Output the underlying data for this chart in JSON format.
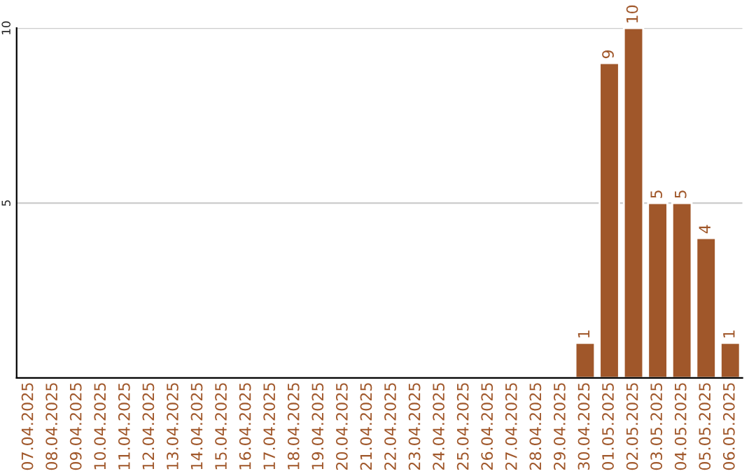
{
  "chart_data": {
    "type": "bar",
    "categories": [
      "07.04.2025",
      "08.04.2025",
      "09.04.2025",
      "10.04.2025",
      "11.04.2025",
      "12.04.2025",
      "13.04.2025",
      "14.04.2025",
      "15.04.2025",
      "16.04.2025",
      "17.04.2025",
      "18.04.2025",
      "19.04.2025",
      "20.04.2025",
      "21.04.2025",
      "22.04.2025",
      "23.04.2025",
      "24.04.2025",
      "25.04.2025",
      "26.04.2025",
      "27.04.2025",
      "28.04.2025",
      "29.04.2025",
      "30.04.2025",
      "01.05.2025",
      "02.05.2025",
      "03.05.2025",
      "04.05.2025",
      "05.05.2025",
      "06.05.2025"
    ],
    "values": [
      null,
      null,
      null,
      null,
      null,
      null,
      null,
      null,
      null,
      null,
      null,
      null,
      null,
      null,
      null,
      null,
      null,
      null,
      null,
      null,
      null,
      null,
      null,
      1,
      9,
      10,
      5,
      5,
      4,
      1
    ],
    "value_labels": [
      null,
      null,
      null,
      null,
      null,
      null,
      null,
      null,
      null,
      null,
      null,
      null,
      null,
      null,
      null,
      null,
      null,
      null,
      null,
      null,
      null,
      null,
      null,
      "1",
      "9",
      "10",
      "5",
      "5",
      "4",
      "1"
    ],
    "color": "#a0572a",
    "ylim": [
      0,
      10
    ],
    "yticks": [
      5,
      10
    ],
    "grid": "y",
    "legend": false
  }
}
